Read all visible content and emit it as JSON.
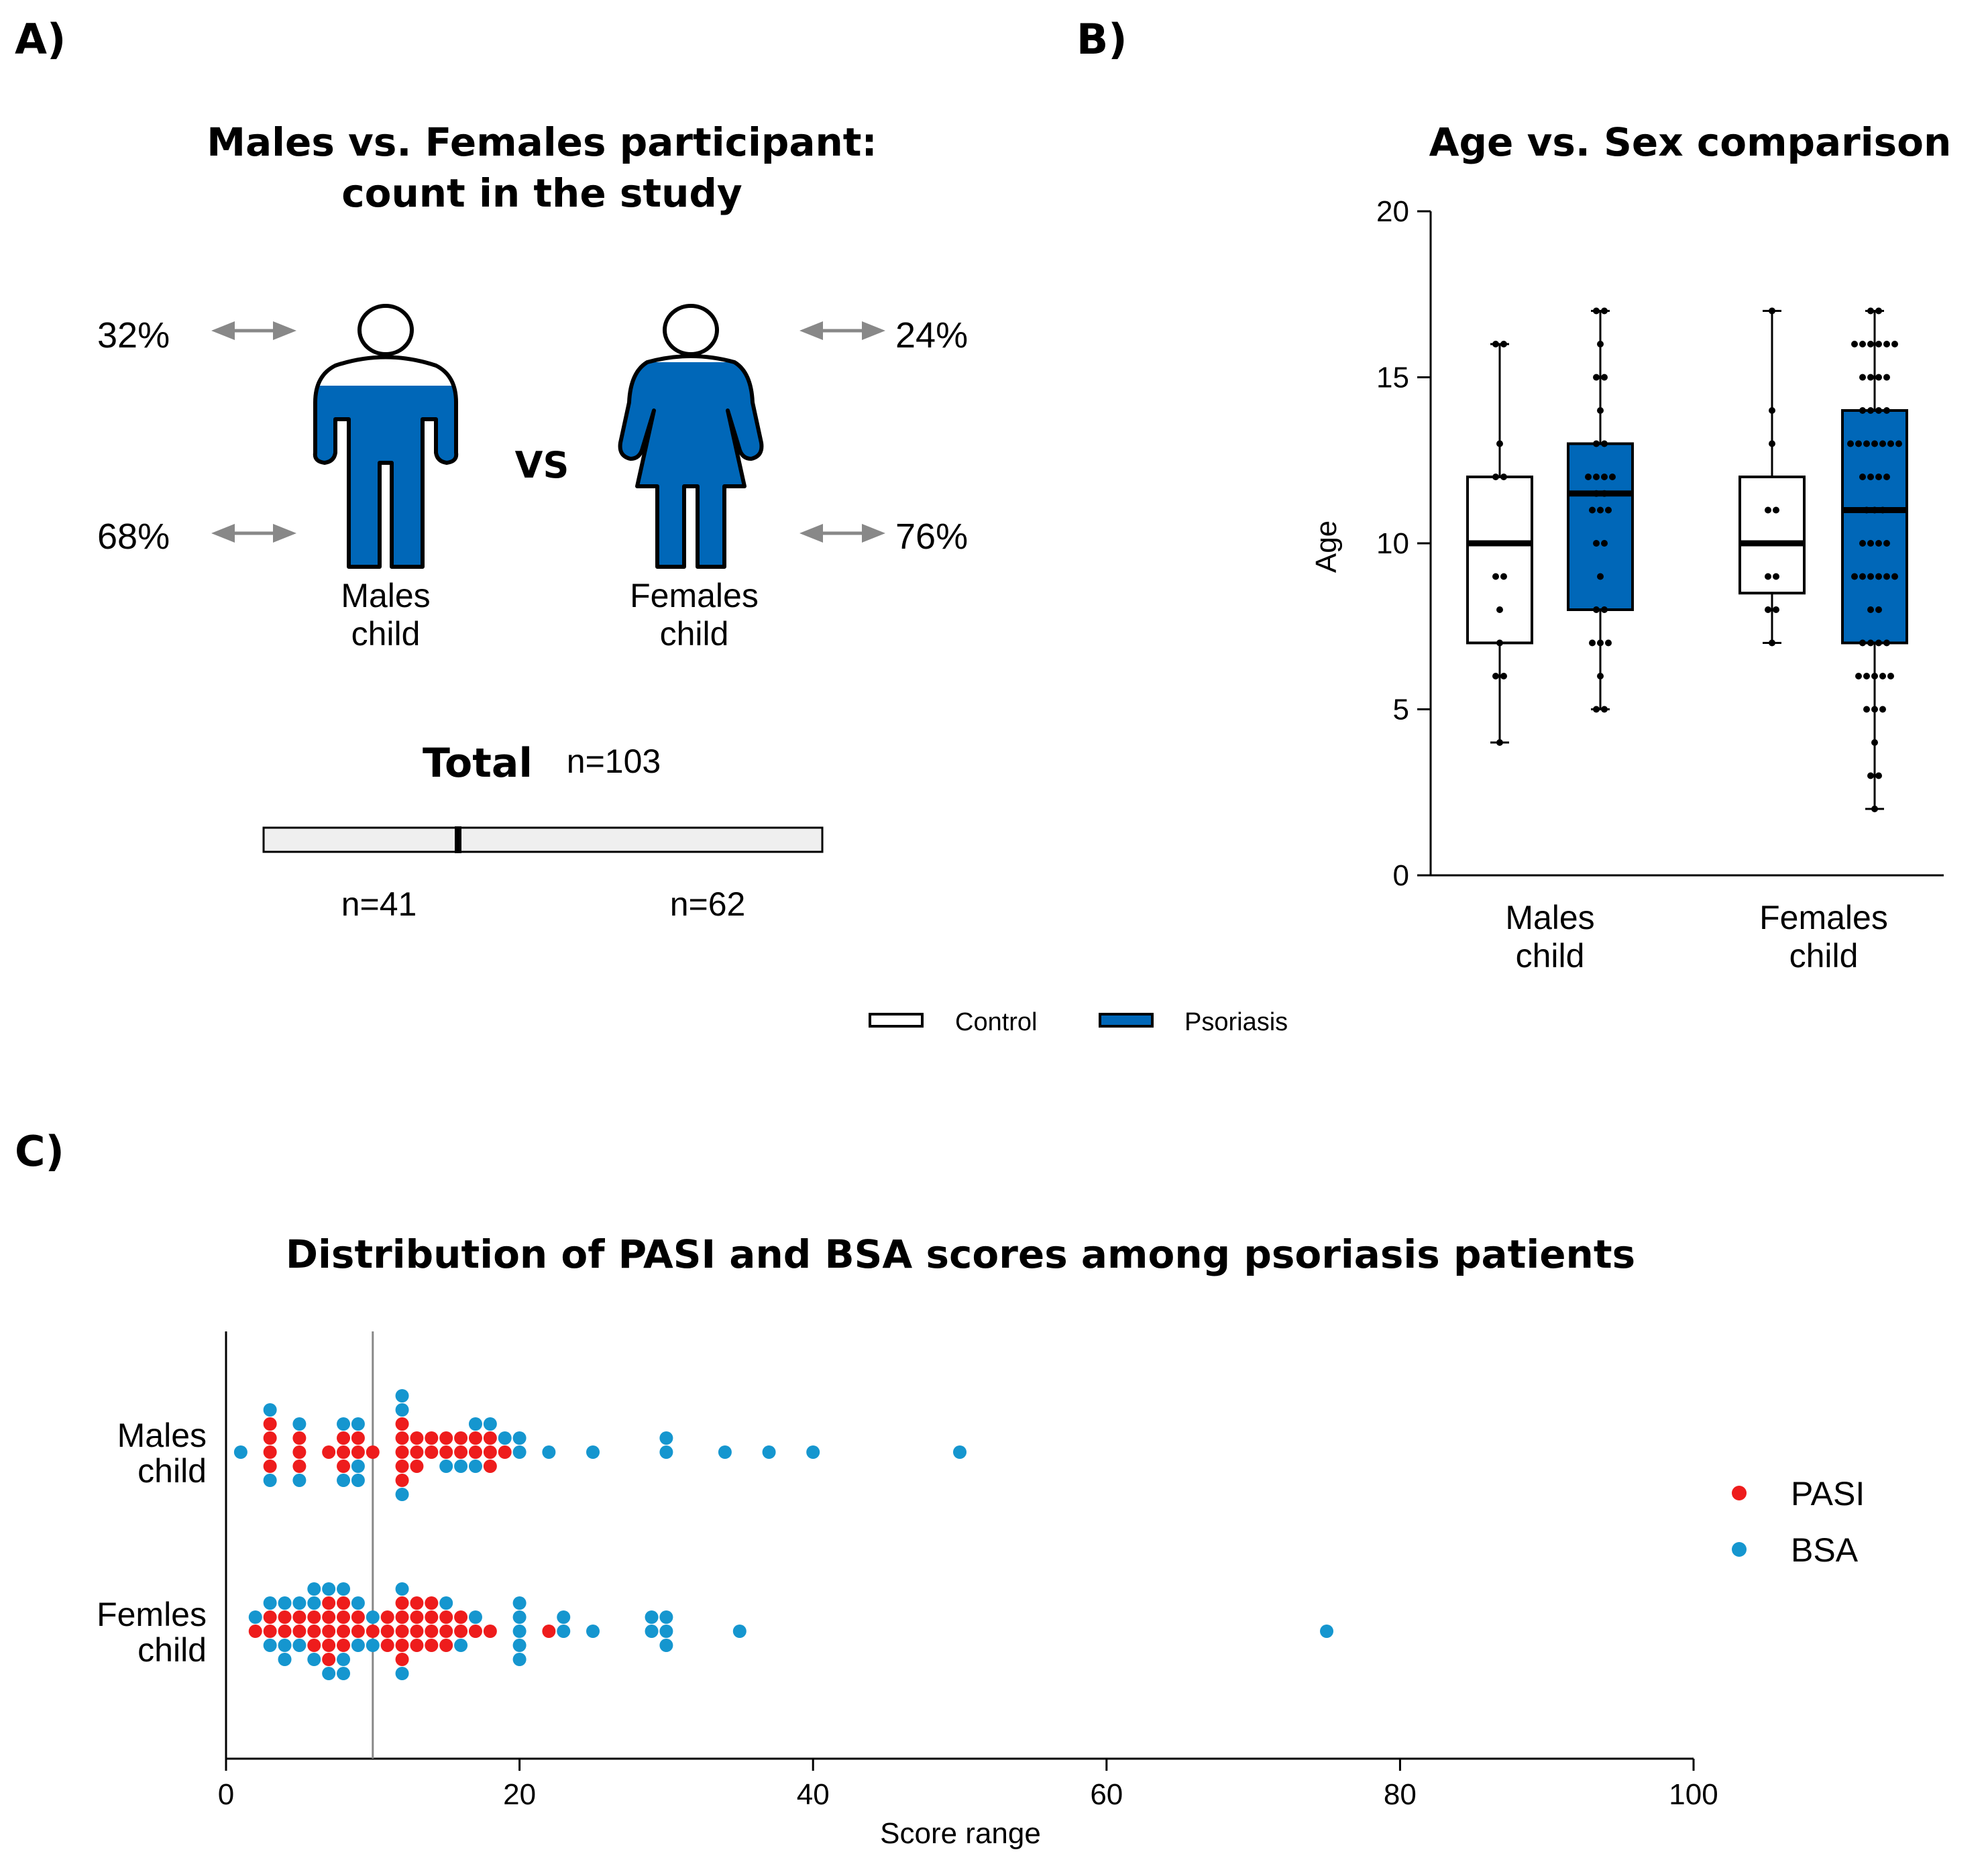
{
  "panels": {
    "a": "A)",
    "b": "B)",
    "c": "C)"
  },
  "colors": {
    "blue": "#0067b8",
    "red": "#ee1c1c",
    "cyan": "#1596cf",
    "grey": "#888888"
  },
  "panel_a": {
    "title_line1": "Males vs. Females participant:",
    "title_line2": "count in the study",
    "vs": "VS",
    "males": {
      "label_line1": "Males",
      "label_line2": "child",
      "top_pct": "32%",
      "bottom_pct": "68%"
    },
    "females": {
      "label_line1": "Females",
      "label_line2": "child",
      "top_pct": "24%",
      "bottom_pct": "76%"
    },
    "total_label": "Total",
    "total_n": "n=103",
    "n_males": "n=41",
    "n_females": "n=62"
  },
  "chart_data": [
    {
      "type": "box",
      "title": "Age vs. Sex comparison",
      "ylabel": "Age",
      "ylim": [
        0,
        20
      ],
      "yticks": [
        0,
        5,
        10,
        15,
        20
      ],
      "categories": [
        "Males child",
        "Females child"
      ],
      "category_lines": [
        [
          "Males",
          "child"
        ],
        [
          "Females",
          "child"
        ]
      ],
      "legend": [
        "Control",
        "Psoriasis"
      ],
      "boxes": [
        {
          "category": "Males child",
          "group": "Control",
          "min": 4,
          "q1": 7,
          "median": 10,
          "q3": 12,
          "max": 16,
          "points": [
            16,
            16,
            13,
            12,
            12,
            9,
            9,
            8,
            7,
            6,
            6,
            4
          ]
        },
        {
          "category": "Males child",
          "group": "Psoriasis",
          "min": 5,
          "q1": 8,
          "median": 11.5,
          "q3": 13,
          "max": 17,
          "points": [
            17,
            17,
            16,
            15,
            15,
            14,
            13,
            13,
            12,
            12,
            12,
            12,
            11.5,
            11.5,
            11,
            11,
            11,
            10,
            10,
            9,
            8,
            8,
            7,
            7,
            7,
            6,
            5,
            5
          ]
        },
        {
          "category": "Females child",
          "group": "Control",
          "min": 7,
          "q1": 8.5,
          "median": 10,
          "q3": 12,
          "max": 17,
          "points": [
            17,
            14,
            13,
            11,
            11,
            9,
            9,
            8,
            8,
            7
          ]
        },
        {
          "category": "Females child",
          "group": "Psoriasis",
          "min": 2,
          "q1": 7,
          "median": 11,
          "q3": 14,
          "max": 17,
          "points": [
            17,
            17,
            16,
            16,
            16,
            16,
            16,
            16,
            15,
            15,
            15,
            15,
            14,
            14,
            14,
            14,
            13,
            13,
            13,
            13,
            13,
            13,
            13,
            12,
            12,
            12,
            12,
            11,
            11,
            11,
            10,
            10,
            10,
            10,
            9,
            9,
            9,
            9,
            9,
            9,
            8,
            8,
            7,
            7,
            7,
            7,
            6,
            6,
            6,
            6,
            6,
            5,
            5,
            5,
            4,
            3,
            3,
            2
          ]
        }
      ]
    },
    {
      "type": "scatter",
      "title": "Distribution of PASI and BSA scores among psoriasis patients",
      "xlabel": "Score range",
      "xlim": [
        0,
        100
      ],
      "xticks": [
        0,
        20,
        40,
        60,
        80,
        100
      ],
      "reference_line_x": 10,
      "categories": [
        "Males child",
        "Femles child"
      ],
      "category_lines": [
        [
          "Males",
          "child"
        ],
        [
          "Femles",
          "child"
        ]
      ],
      "legend": [
        "PASI",
        "BSA"
      ],
      "series": [
        {
          "name": "PASI",
          "group": "Males child",
          "values": [
            3,
            3,
            3,
            3,
            5,
            5,
            5,
            7,
            8,
            8,
            8,
            9,
            9,
            10,
            12,
            12,
            12,
            12,
            12,
            13,
            13,
            13,
            14,
            14,
            15,
            15,
            16,
            16,
            17,
            17,
            18,
            18,
            18,
            19
          ]
        },
        {
          "name": "BSA",
          "group": "Males child",
          "values": [
            1,
            3,
            3,
            5,
            5,
            8,
            8,
            9,
            9,
            9,
            12,
            12,
            12,
            15,
            16,
            17,
            17,
            18,
            19,
            20,
            20,
            22,
            25,
            30,
            30,
            34,
            37,
            40,
            50
          ]
        },
        {
          "name": "PASI",
          "group": "Femles child",
          "values": [
            2,
            3,
            3,
            4,
            4,
            5,
            5,
            6,
            6,
            6,
            7,
            7,
            7,
            7,
            7,
            8,
            8,
            8,
            8,
            9,
            9,
            10,
            11,
            11,
            11,
            12,
            12,
            12,
            12,
            12,
            13,
            13,
            13,
            13,
            14,
            14,
            14,
            14,
            15,
            15,
            15,
            16,
            16,
            17,
            18,
            22
          ]
        },
        {
          "name": "BSA",
          "group": "Femles child",
          "values": [
            2,
            3,
            3,
            4,
            4,
            4,
            5,
            5,
            6,
            6,
            6,
            7,
            7,
            8,
            8,
            8,
            9,
            9,
            10,
            10,
            12,
            12,
            15,
            16,
            17,
            20,
            20,
            20,
            20,
            20,
            23,
            23,
            25,
            29,
            29,
            30,
            30,
            30,
            35,
            75
          ]
        }
      ]
    }
  ]
}
